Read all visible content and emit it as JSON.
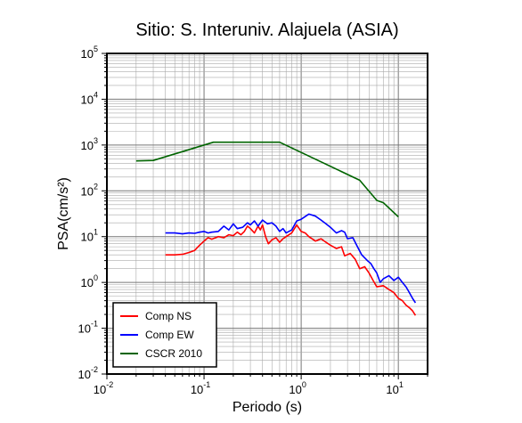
{
  "chart_data": {
    "type": "line",
    "title": "Sitio: S. Interuniv. Alajuela (ASIA)",
    "xlabel": "Periodo (s)",
    "ylabel": "PSA(cm/s²)",
    "x_scale": "log",
    "y_scale": "log",
    "xlim": [
      0.01,
      20
    ],
    "ylim": [
      0.01,
      100000
    ],
    "grid": true,
    "legend_position": "bottom-left",
    "x_ticks": [
      {
        "base": "10",
        "exp": "-2",
        "value": 0.01
      },
      {
        "base": "10",
        "exp": "-1",
        "value": 0.1
      },
      {
        "base": "10",
        "exp": "0",
        "value": 1
      },
      {
        "base": "10",
        "exp": "1",
        "value": 10
      }
    ],
    "y_ticks": [
      {
        "base": "10",
        "exp": "-2",
        "value": 0.01
      },
      {
        "base": "10",
        "exp": "-1",
        "value": 0.1
      },
      {
        "base": "10",
        "exp": "0",
        "value": 1
      },
      {
        "base": "10",
        "exp": "1",
        "value": 10
      },
      {
        "base": "10",
        "exp": "2",
        "value": 100
      },
      {
        "base": "10",
        "exp": "3",
        "value": 1000
      },
      {
        "base": "10",
        "exp": "4",
        "value": 10000
      },
      {
        "base": "10",
        "exp": "5",
        "value": 100000
      }
    ],
    "series": [
      {
        "name": "Comp NS",
        "color": "#ff0000",
        "points": [
          [
            0.04,
            4.0
          ],
          [
            0.05,
            4.0
          ],
          [
            0.06,
            4.1
          ],
          [
            0.07,
            4.5
          ],
          [
            0.08,
            5.0
          ],
          [
            0.09,
            6.5
          ],
          [
            0.1,
            8.0
          ],
          [
            0.11,
            9.5
          ],
          [
            0.12,
            8.8
          ],
          [
            0.14,
            10.0
          ],
          [
            0.16,
            9.5
          ],
          [
            0.18,
            11.0
          ],
          [
            0.2,
            10.5
          ],
          [
            0.22,
            12.5
          ],
          [
            0.24,
            11.0
          ],
          [
            0.26,
            13.0
          ],
          [
            0.28,
            17.0
          ],
          [
            0.3,
            15.0
          ],
          [
            0.33,
            12.0
          ],
          [
            0.36,
            17.0
          ],
          [
            0.38,
            14.0
          ],
          [
            0.4,
            18.0
          ],
          [
            0.43,
            10.0
          ],
          [
            0.46,
            7.0
          ],
          [
            0.5,
            8.5
          ],
          [
            0.55,
            9.5
          ],
          [
            0.6,
            7.5
          ],
          [
            0.65,
            9.0
          ],
          [
            0.7,
            10.0
          ],
          [
            0.8,
            12.0
          ],
          [
            0.9,
            18.0
          ],
          [
            1.0,
            13.0
          ],
          [
            1.1,
            12.0
          ],
          [
            1.2,
            10.0
          ],
          [
            1.4,
            8.0
          ],
          [
            1.6,
            9.0
          ],
          [
            1.8,
            7.5
          ],
          [
            2.0,
            6.5
          ],
          [
            2.3,
            5.5
          ],
          [
            2.6,
            6.0
          ],
          [
            2.8,
            3.8
          ],
          [
            3.2,
            4.3
          ],
          [
            3.6,
            3.2
          ],
          [
            4.0,
            2.0
          ],
          [
            4.5,
            2.2
          ],
          [
            5.0,
            1.6
          ],
          [
            5.5,
            1.1
          ],
          [
            6.0,
            0.8
          ],
          [
            7.0,
            0.85
          ],
          [
            8.0,
            0.7
          ],
          [
            9.0,
            0.6
          ],
          [
            10.0,
            0.45
          ],
          [
            11.0,
            0.4
          ],
          [
            12.0,
            0.32
          ],
          [
            13.0,
            0.28
          ],
          [
            14.0,
            0.24
          ],
          [
            15.0,
            0.19
          ]
        ]
      },
      {
        "name": "Comp EW",
        "color": "#0000ff",
        "points": [
          [
            0.04,
            12.0
          ],
          [
            0.05,
            12.0
          ],
          [
            0.06,
            11.5
          ],
          [
            0.07,
            12.0
          ],
          [
            0.08,
            11.8
          ],
          [
            0.09,
            12.5
          ],
          [
            0.1,
            13.0
          ],
          [
            0.11,
            12.0
          ],
          [
            0.12,
            12.5
          ],
          [
            0.14,
            13.0
          ],
          [
            0.16,
            17.0
          ],
          [
            0.18,
            14.0
          ],
          [
            0.2,
            19.0
          ],
          [
            0.22,
            15.0
          ],
          [
            0.25,
            16.0
          ],
          [
            0.28,
            20.0
          ],
          [
            0.3,
            18.0
          ],
          [
            0.33,
            22.0
          ],
          [
            0.36,
            17.0
          ],
          [
            0.4,
            23.0
          ],
          [
            0.45,
            19.0
          ],
          [
            0.5,
            20.0
          ],
          [
            0.55,
            17.0
          ],
          [
            0.6,
            13.0
          ],
          [
            0.65,
            15.0
          ],
          [
            0.7,
            12.0
          ],
          [
            0.8,
            14.0
          ],
          [
            0.9,
            22.0
          ],
          [
            1.0,
            24.0
          ],
          [
            1.2,
            31.0
          ],
          [
            1.4,
            28.0
          ],
          [
            1.6,
            23.0
          ],
          [
            1.8,
            19.0
          ],
          [
            2.0,
            16.0
          ],
          [
            2.3,
            12.0
          ],
          [
            2.6,
            13.5
          ],
          [
            2.8,
            12.5
          ],
          [
            3.0,
            9.0
          ],
          [
            3.4,
            9.5
          ],
          [
            3.8,
            6.0
          ],
          [
            4.2,
            4.0
          ],
          [
            4.8,
            3.0
          ],
          [
            5.2,
            2.6
          ],
          [
            5.6,
            2.0
          ],
          [
            6.0,
            1.6
          ],
          [
            6.5,
            1.0
          ],
          [
            7.0,
            1.2
          ],
          [
            8.0,
            1.4
          ],
          [
            9.0,
            1.1
          ],
          [
            10.0,
            1.3
          ],
          [
            11.0,
            1.0
          ],
          [
            12.0,
            0.8
          ],
          [
            13.0,
            0.6
          ],
          [
            14.0,
            0.45
          ],
          [
            15.0,
            0.36
          ]
        ]
      },
      {
        "name": "CSCR 2010",
        "color": "#006400",
        "points": [
          [
            0.02,
            450
          ],
          [
            0.03,
            460
          ],
          [
            0.125,
            1150
          ],
          [
            0.6,
            1150
          ],
          [
            4.0,
            170
          ],
          [
            6.0,
            62
          ],
          [
            7.0,
            55
          ],
          [
            10.0,
            27
          ]
        ]
      }
    ]
  }
}
